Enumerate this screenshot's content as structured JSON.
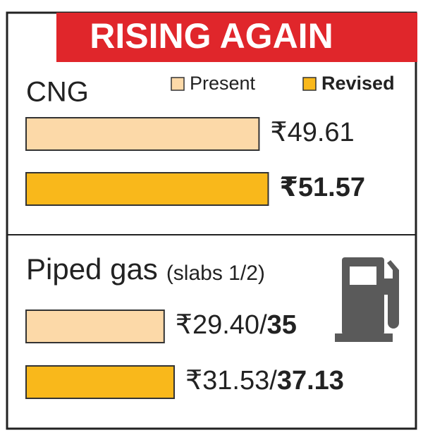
{
  "title": "RISING AGAIN",
  "chart_data": [
    {
      "type": "bar",
      "orientation": "horizontal",
      "title": "CNG",
      "series": [
        {
          "name": "Present",
          "color": "#fcd9a8",
          "values": [
            49.61
          ],
          "value_labels": [
            "₹49.61"
          ]
        },
        {
          "name": "Revised",
          "color": "#f9b81b",
          "values": [
            51.57
          ],
          "value_labels": [
            "₹51.57"
          ]
        }
      ]
    },
    {
      "type": "bar",
      "orientation": "horizontal",
      "title": "Piped gas",
      "subtitle": "(slabs 1/2)",
      "series": [
        {
          "name": "Present",
          "color": "#fcd9a8",
          "values": [
            29.4,
            35
          ],
          "value_labels": [
            "₹29.40/",
            "35"
          ]
        },
        {
          "name": "Revised",
          "color": "#f9b81b",
          "values": [
            31.53,
            37.13
          ],
          "value_labels": [
            "₹31.53/",
            "37.13"
          ]
        }
      ]
    }
  ]
}
